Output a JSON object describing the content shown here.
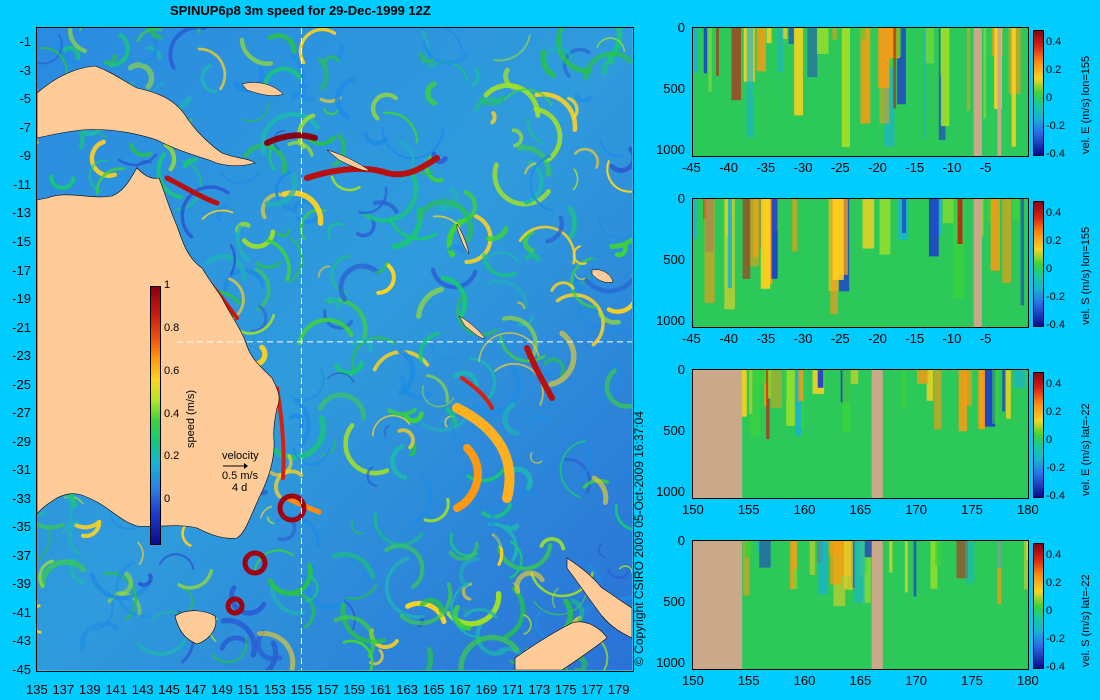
{
  "title": "SPINUP6p8 3m speed for 29-Dec-1999 12Z",
  "copyright": "© Copyright CSIRO 2009   05-Oct-2009 16:37:04",
  "colors": {
    "background": "#00ccff",
    "land": "#ffcc99",
    "sea_low": "#2a6ed8",
    "sea_mid": "#28c850",
    "sea_high": "#ffd21e",
    "eddy": "#960010",
    "section_land": "#c9a98a",
    "guide_line": "#ffffff"
  },
  "map": {
    "lat_labels": [
      "-1",
      "-3",
      "-5",
      "-7",
      "-9",
      "-11",
      "-13",
      "-15",
      "-17",
      "-19",
      "-21",
      "-23",
      "-25",
      "-27",
      "-29",
      "-31",
      "-33",
      "-35",
      "-37",
      "-39",
      "-41",
      "-43",
      "-45"
    ],
    "lon_labels": [
      "135",
      "137",
      "139",
      "141",
      "143",
      "145",
      "147",
      "149",
      "151",
      "153",
      "155",
      "157",
      "159",
      "161",
      "163",
      "165",
      "167",
      "169",
      "171",
      "173",
      "175",
      "177",
      "179"
    ],
    "lat_range": [
      -45,
      0
    ],
    "lon_range": [
      135,
      180
    ],
    "section_lon": 155,
    "section_lat": -22,
    "speed_colorbar": {
      "label": "speed (m/s)",
      "ticks": [
        "1",
        "0.8",
        "0.6",
        "0.4",
        "0.2",
        "0"
      ],
      "range": [
        -0.2,
        1
      ]
    },
    "velocity_legend": {
      "title": "velocity",
      "speed": "0.5 m/s",
      "duration": "4 d"
    }
  },
  "panels": [
    {
      "id": "panel-1",
      "ylabel": "vel. E (m/s) lon=155",
      "x_labels": [
        "-45",
        "-40",
        "-35",
        "-30",
        "-25",
        "-20",
        "-15",
        "-10",
        "-5"
      ],
      "x_range": [
        -45,
        0
      ],
      "y_labels": [
        "0",
        "500",
        "1000"
      ],
      "y_range": [
        0,
        1050
      ],
      "cbar_ticks": [
        "0.4",
        "0.2",
        "0",
        "-0.2",
        "-0.4"
      ]
    },
    {
      "id": "panel-2",
      "ylabel": "vel. S (m/s) lon=155",
      "x_labels": [
        "-45",
        "-40",
        "-35",
        "-30",
        "-25",
        "-20",
        "-15",
        "-10",
        "-5"
      ],
      "x_range": [
        -45,
        0
      ],
      "y_labels": [
        "0",
        "500",
        "1000"
      ],
      "y_range": [
        0,
        1050
      ],
      "cbar_ticks": [
        "0.4",
        "0.2",
        "0",
        "-0.2",
        "-0.4"
      ]
    },
    {
      "id": "panel-3",
      "ylabel": "vel. E (m/s) lat=-22",
      "x_labels": [
        "150",
        "155",
        "160",
        "165",
        "170",
        "175",
        "180"
      ],
      "x_range": [
        150,
        180
      ],
      "y_labels": [
        "0",
        "500",
        "1000"
      ],
      "y_range": [
        0,
        1050
      ],
      "cbar_ticks": [
        "0.4",
        "0.2",
        "0",
        "-0.2",
        "-0.4"
      ]
    },
    {
      "id": "panel-4",
      "ylabel": "vel. S (m/s) lat=-22",
      "x_labels": [
        "150",
        "155",
        "160",
        "165",
        "170",
        "175",
        "180"
      ],
      "x_range": [
        150,
        180
      ],
      "y_labels": [
        "0",
        "500",
        "1000"
      ],
      "y_range": [
        0,
        1050
      ],
      "cbar_ticks": [
        "0.4",
        "0.2",
        "0",
        "-0.2",
        "-0.4"
      ]
    }
  ]
}
